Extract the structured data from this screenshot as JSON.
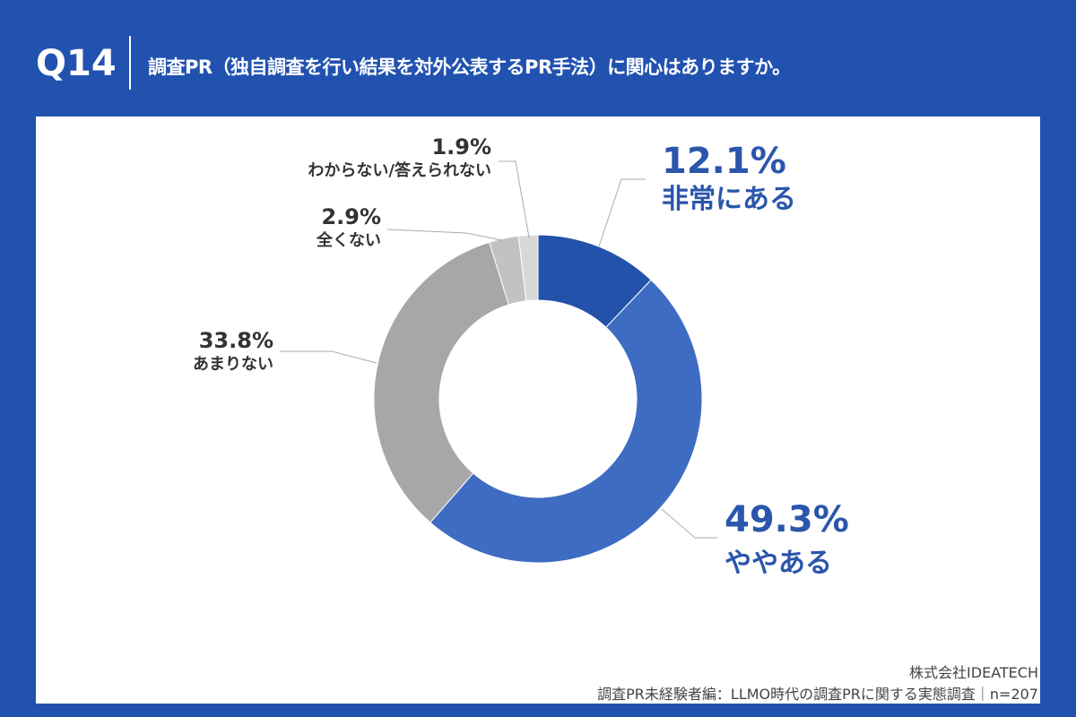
{
  "header": {
    "question_number": "Q14",
    "question": "調査PR（独自調査を行い結果を対外公表するPR手法）に関心はありますか。"
  },
  "chart_data": {
    "type": "pie",
    "donut": true,
    "start": "top, clockwise",
    "slices": [
      {
        "label": "非常にある",
        "value": 12.1,
        "display": "12.1%",
        "color": "#2352aa",
        "label_color": "#2a56ab"
      },
      {
        "label": "ややある",
        "value": 49.3,
        "display": "49.3%",
        "color": "#3e6cc2",
        "label_color": "#2a56ab"
      },
      {
        "label": "あまりない",
        "value": 33.8,
        "display": "33.8%",
        "color": "#a7a7a9",
        "label_color": "#333333"
      },
      {
        "label": "全くない",
        "value": 2.9,
        "display": "2.9%",
        "color": "#c2c2c4",
        "label_color": "#333333"
      },
      {
        "label": "わからない/答えられない",
        "value": 1.9,
        "display": "1.9%",
        "color": "#d8d8d9",
        "label_color": "#333333"
      }
    ]
  },
  "footer": {
    "company": "株式会社IDEATECH",
    "source": "調査PR未経験者編：LLMO時代の調査PRに関する実態調査｜n=207"
  }
}
